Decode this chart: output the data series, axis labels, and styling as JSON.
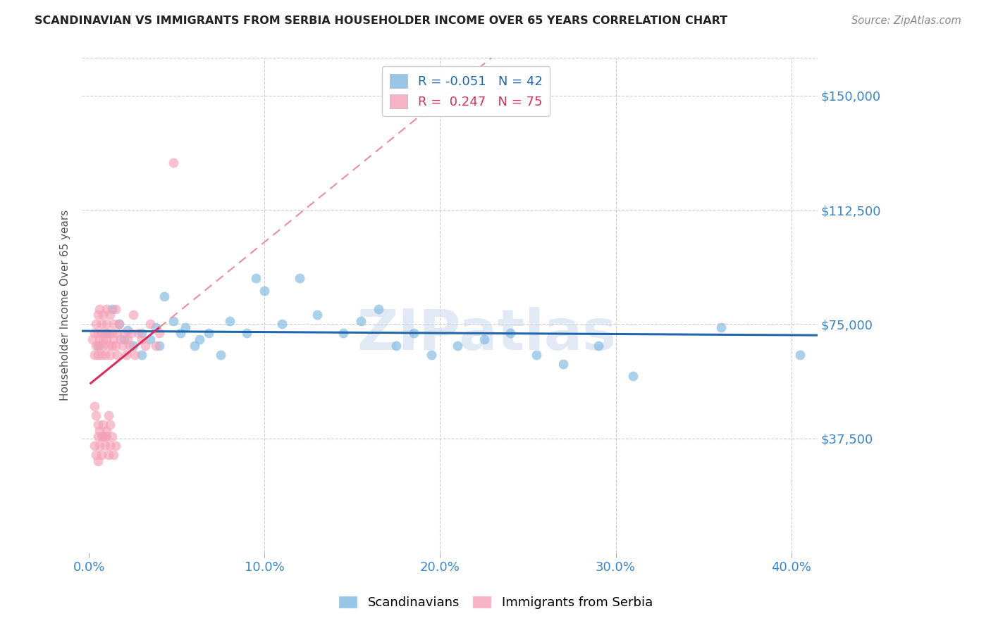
{
  "title": "SCANDINAVIAN VS IMMIGRANTS FROM SERBIA HOUSEHOLDER INCOME OVER 65 YEARS CORRELATION CHART",
  "source": "Source: ZipAtlas.com",
  "ylabel": "Householder Income Over 65 years",
  "xlabel_ticks": [
    "0.0%",
    "10.0%",
    "20.0%",
    "30.0%",
    "40.0%"
  ],
  "xlabel_vals": [
    0.0,
    0.1,
    0.2,
    0.3,
    0.4
  ],
  "ytick_labels": [
    "$37,500",
    "$75,000",
    "$112,500",
    "$150,000"
  ],
  "ytick_vals": [
    37500,
    75000,
    112500,
    150000
  ],
  "ylim": [
    0,
    162500
  ],
  "xlim": [
    -0.004,
    0.415
  ],
  "background_color": "#ffffff",
  "grid_color": "#cccccc",
  "watermark": "ZIPatlas",
  "legend_R_blue": "-0.051",
  "legend_N_blue": "42",
  "legend_R_pink": "0.247",
  "legend_N_pink": "75",
  "blue_color": "#7fb8e0",
  "pink_color": "#f4a0b8",
  "blue_line_color": "#2166ac",
  "pink_line_color": "#d63060",
  "pink_dash_color": "#e8909a",
  "scandinavians_x": [
    0.005,
    0.01,
    0.013,
    0.017,
    0.02,
    0.022,
    0.025,
    0.03,
    0.03,
    0.035,
    0.038,
    0.04,
    0.043,
    0.048,
    0.052,
    0.055,
    0.06,
    0.063,
    0.068,
    0.075,
    0.08,
    0.09,
    0.095,
    0.1,
    0.11,
    0.12,
    0.13,
    0.145,
    0.155,
    0.165,
    0.175,
    0.185,
    0.195,
    0.21,
    0.225,
    0.24,
    0.255,
    0.27,
    0.29,
    0.31,
    0.36,
    0.405
  ],
  "scandinavians_y": [
    68000,
    72000,
    80000,
    75000,
    70000,
    73000,
    68000,
    65000,
    72000,
    70000,
    74000,
    68000,
    84000,
    76000,
    72000,
    74000,
    68000,
    70000,
    72000,
    65000,
    76000,
    72000,
    90000,
    86000,
    75000,
    90000,
    78000,
    72000,
    76000,
    80000,
    68000,
    72000,
    65000,
    68000,
    70000,
    72000,
    65000,
    62000,
    68000,
    58000,
    74000,
    65000
  ],
  "serbia_x": [
    0.002,
    0.003,
    0.003,
    0.004,
    0.004,
    0.005,
    0.005,
    0.005,
    0.006,
    0.006,
    0.006,
    0.007,
    0.007,
    0.007,
    0.008,
    0.008,
    0.008,
    0.009,
    0.009,
    0.01,
    0.01,
    0.01,
    0.011,
    0.011,
    0.012,
    0.012,
    0.013,
    0.013,
    0.014,
    0.014,
    0.015,
    0.015,
    0.016,
    0.016,
    0.017,
    0.018,
    0.019,
    0.02,
    0.021,
    0.022,
    0.023,
    0.024,
    0.025,
    0.026,
    0.028,
    0.03,
    0.032,
    0.035,
    0.038,
    0.04,
    0.003,
    0.004,
    0.005,
    0.006,
    0.007,
    0.008,
    0.009,
    0.01,
    0.011,
    0.012,
    0.003,
    0.004,
    0.005,
    0.005,
    0.006,
    0.007,
    0.008,
    0.009,
    0.01,
    0.011,
    0.012,
    0.013,
    0.014,
    0.015,
    0.048
  ],
  "serbia_y": [
    70000,
    72000,
    65000,
    68000,
    75000,
    72000,
    65000,
    78000,
    70000,
    68000,
    80000,
    72000,
    65000,
    75000,
    70000,
    68000,
    78000,
    72000,
    65000,
    80000,
    70000,
    75000,
    68000,
    72000,
    65000,
    78000,
    72000,
    68000,
    75000,
    70000,
    68000,
    80000,
    72000,
    65000,
    75000,
    70000,
    68000,
    72000,
    65000,
    70000,
    68000,
    72000,
    78000,
    65000,
    72000,
    70000,
    68000,
    75000,
    68000,
    72000,
    48000,
    45000,
    42000,
    40000,
    38000,
    42000,
    38000,
    40000,
    45000,
    42000,
    35000,
    32000,
    38000,
    30000,
    35000,
    32000,
    38000,
    35000,
    38000,
    32000,
    35000,
    38000,
    32000,
    35000,
    128000
  ]
}
